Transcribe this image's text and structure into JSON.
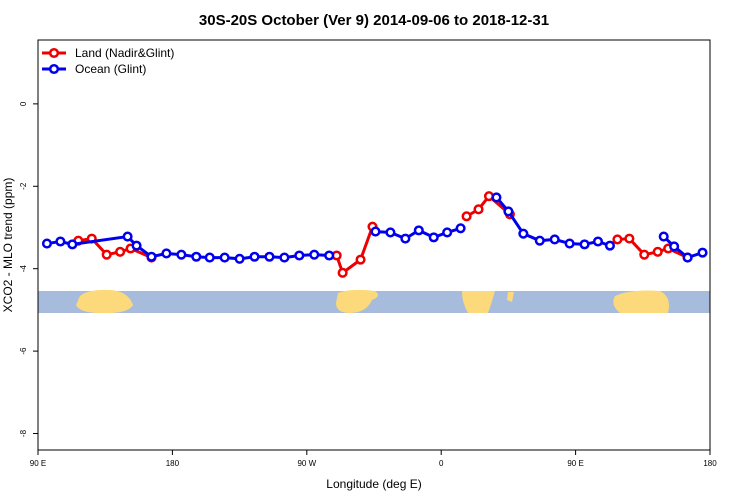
{
  "chart_data": {
    "type": "line",
    "title": "30S-20S October (Ver 9)   2014-09-06 to 2018-12-31",
    "x_label": "Longitude (deg E)",
    "y_label": "XCO2 - MLO trend (ppm)",
    "xlim": [
      90,
      540
    ],
    "xticks": [
      {
        "value": 90,
        "label": "90 E"
      },
      {
        "value": 180,
        "label": "180"
      },
      {
        "value": 270,
        "label": "90 W"
      },
      {
        "value": 360,
        "label": "0"
      },
      {
        "value": 450,
        "label": "90 E"
      },
      {
        "value": 540,
        "label": "180"
      }
    ],
    "ylim": [
      -8.4,
      1.55
    ],
    "yticks": [
      0,
      -2,
      -4,
      -6,
      -8
    ],
    "legend": "top-left",
    "series": [
      {
        "name": "Land (Nadir&Glint)",
        "color": "#ee0000",
        "x": [
          117,
          126,
          136,
          145,
          152,
          166,
          null,
          290,
          294,
          306,
          314,
          null,
          377,
          385,
          392,
          406,
          null,
          478,
          486,
          496,
          505,
          512,
          525
        ],
        "values": [
          -3.32,
          -3.27,
          -3.66,
          -3.59,
          -3.51,
          -3.73,
          null,
          -3.68,
          -4.1,
          -3.78,
          -2.98,
          null,
          -2.73,
          -2.56,
          -2.24,
          -2.68,
          null,
          -3.29,
          -3.27,
          -3.66,
          -3.59,
          -3.51,
          -3.73
        ]
      },
      {
        "name": "Ocean (Glint)",
        "color": "#0000ee",
        "x": [
          96,
          105,
          113,
          150,
          156,
          166,
          176,
          186,
          196,
          205,
          215,
          225,
          235,
          245,
          255,
          265,
          275,
          285,
          null,
          316,
          326,
          336,
          345,
          355,
          364,
          373,
          null,
          397,
          405,
          415,
          426,
          436,
          446,
          456,
          465,
          473,
          null,
          509,
          516,
          525,
          535
        ],
        "values": [
          -3.39,
          -3.34,
          -3.41,
          -3.22,
          -3.44,
          -3.71,
          -3.63,
          -3.66,
          -3.71,
          -3.73,
          -3.73,
          -3.76,
          -3.71,
          -3.71,
          -3.73,
          -3.68,
          -3.66,
          -3.68,
          null,
          -3.1,
          -3.12,
          -3.27,
          -3.07,
          -3.24,
          -3.12,
          -3.02,
          null,
          -2.27,
          -2.61,
          -3.15,
          -3.32,
          -3.29,
          -3.39,
          -3.41,
          -3.34,
          -3.44,
          null,
          -3.22,
          -3.46,
          -3.73,
          -3.61
        ]
      }
    ]
  }
}
